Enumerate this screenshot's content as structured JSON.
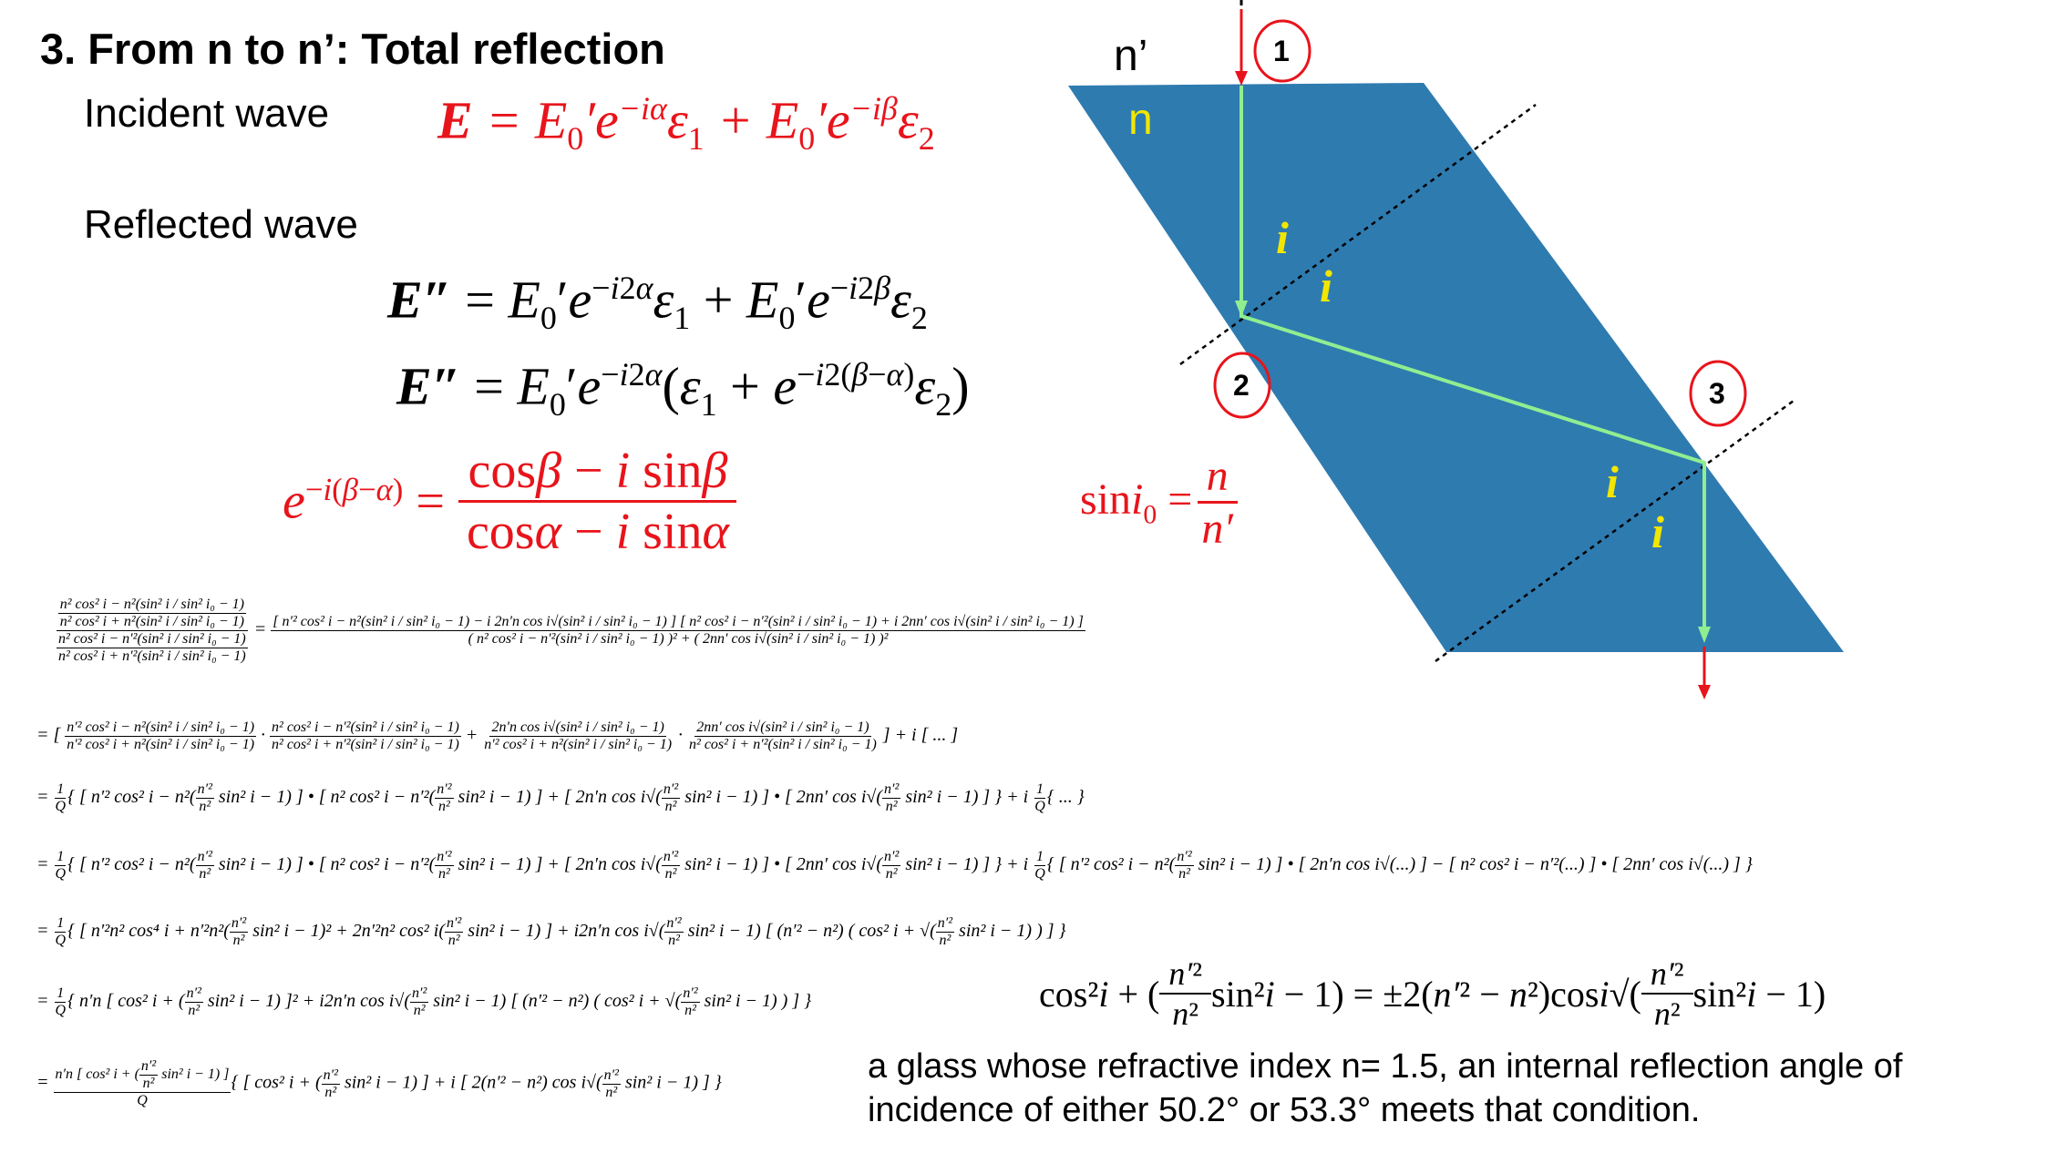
{
  "heading": "3. From n to n’: Total reflection",
  "incident_label": "Incident wave",
  "reflected_label": "Reflected wave",
  "eq_incident": "E = E₀′e^{−iα}ε₁ + E₀′e^{−iβ}ε₂",
  "eq_reflected_1": "E″ = E₀′e^{−i2α}ε₁ + E₀′e^{−i2β}ε₂",
  "eq_reflected_2": "E″ = E₀′e^{−i2α}(ε₁ + e^{−i2(β−α)}ε₂)",
  "eq_phase": "e^{−i(β−α)} = (cos β − i sin β)/(cos α − i sin α)",
  "eq_critical": "sin i₀ = n/n′",
  "eq_condition": "cos² i + (n′²/n² sin² i − 1) = ±2(n′² − n²) cos i √((n′²/n²) sin² i − 1)",
  "conclusion_line1": "a glass whose refractive index n= 1.5, an internal reflection angle of",
  "conclusion_line2": "incidence of either 50.2° or 53.3° meets that condition.",
  "diagram": {
    "medium_outer": "n’",
    "medium_inner": "n",
    "point_1": "1",
    "point_2": "2",
    "point_3": "3",
    "angle_label": "i",
    "colors": {
      "glass": "#2e7bb0",
      "ray": "#90ee90",
      "arrow": "#e8141b",
      "circle": "#e8141b",
      "label": "#f2e600"
    }
  }
}
